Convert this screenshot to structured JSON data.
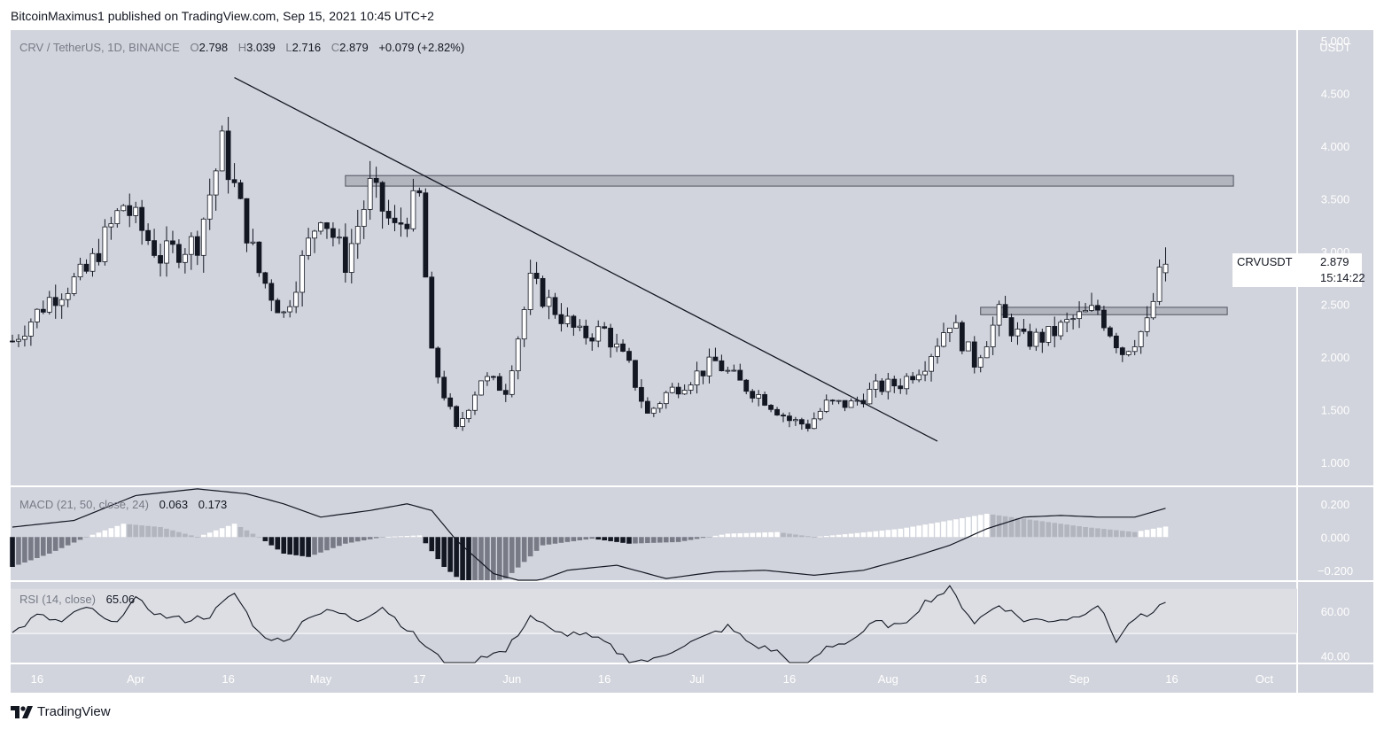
{
  "header": {
    "published": "BitcoinMaximus1 published on TradingView.com, Sep 15, 2021 10:45 UTC+2"
  },
  "footer": {
    "brand": "TradingView",
    "logo": "tradingview-logo"
  },
  "legend": {
    "symbol": "CRV / TetherUS, 1D, BINANCE",
    "o_label": "O",
    "o": "2.798",
    "h_label": "H",
    "h": "3.039",
    "l_label": "L",
    "l": "2.716",
    "c_label": "C",
    "c": "2.879",
    "change": "+0.079 (+2.82%)"
  },
  "price_label": {
    "ticker": "CRVUSDT",
    "price": "2.879",
    "countdown": "15:14:22"
  },
  "axis_unit": "USDT",
  "colors": {
    "background": "#d1d4dc",
    "band": "#b2b5be",
    "candle_up": "#ffffff",
    "candle_down": "#131722",
    "line": "#131722",
    "hist_grey": "#787b86"
  },
  "chart_data": [
    {
      "type": "candlestick",
      "title": "CRV / TetherUS, 1D, BINANCE",
      "ylabel": "USDT",
      "ylim": [
        0.78,
        5.1
      ],
      "yticks": [
        5.0,
        4.5,
        4.0,
        3.5,
        3.0,
        2.5,
        2.0,
        1.5,
        1.0
      ],
      "ytick_labels": [
        "5.000",
        "4.500",
        "4.000",
        "3.500",
        "3.000",
        "2.500",
        "2.000",
        "1.500",
        "1.000"
      ],
      "x_index_range": [
        0,
        198
      ],
      "xticks": [
        {
          "label": "16",
          "index": 4
        },
        {
          "label": "Apr",
          "index": 20
        },
        {
          "label": "16",
          "index": 35
        },
        {
          "label": "May",
          "index": 50
        },
        {
          "label": "17",
          "index": 66
        },
        {
          "label": "Jun",
          "index": 81
        },
        {
          "label": "16",
          "index": 96
        },
        {
          "label": "Jul",
          "index": 111
        },
        {
          "label": "16",
          "index": 126
        },
        {
          "label": "Aug",
          "index": 142
        },
        {
          "label": "16",
          "index": 157
        },
        {
          "label": "Sep",
          "index": 173
        },
        {
          "label": "16",
          "index": 188
        },
        {
          "label": "Oct",
          "index": 203
        }
      ],
      "key_points": [
        {
          "i": 0,
          "p": 2.15
        },
        {
          "i": 6,
          "p": 2.55
        },
        {
          "i": 12,
          "p": 2.8
        },
        {
          "i": 18,
          "p": 3.45
        },
        {
          "i": 24,
          "p": 2.95
        },
        {
          "i": 30,
          "p": 3.1
        },
        {
          "i": 34,
          "p": 4.0
        },
        {
          "i": 40,
          "p": 2.8
        },
        {
          "i": 44,
          "p": 2.4
        },
        {
          "i": 50,
          "p": 3.4
        },
        {
          "i": 54,
          "p": 2.9
        },
        {
          "i": 58,
          "p": 3.6
        },
        {
          "i": 62,
          "p": 3.2
        },
        {
          "i": 66,
          "p": 3.5
        },
        {
          "i": 68,
          "p": 2.0
        },
        {
          "i": 72,
          "p": 1.3
        },
        {
          "i": 76,
          "p": 1.8
        },
        {
          "i": 80,
          "p": 1.7
        },
        {
          "i": 84,
          "p": 2.7
        },
        {
          "i": 88,
          "p": 2.45
        },
        {
          "i": 92,
          "p": 2.2
        },
        {
          "i": 96,
          "p": 2.25
        },
        {
          "i": 100,
          "p": 1.9
        },
        {
          "i": 103,
          "p": 1.45
        },
        {
          "i": 106,
          "p": 1.65
        },
        {
          "i": 110,
          "p": 1.8
        },
        {
          "i": 114,
          "p": 1.95
        },
        {
          "i": 118,
          "p": 1.75
        },
        {
          "i": 122,
          "p": 1.6
        },
        {
          "i": 126,
          "p": 1.4
        },
        {
          "i": 129,
          "p": 1.35
        },
        {
          "i": 132,
          "p": 1.55
        },
        {
          "i": 136,
          "p": 1.55
        },
        {
          "i": 140,
          "p": 1.7
        },
        {
          "i": 144,
          "p": 1.75
        },
        {
          "i": 148,
          "p": 1.95
        },
        {
          "i": 152,
          "p": 2.35
        },
        {
          "i": 156,
          "p": 1.95
        },
        {
          "i": 160,
          "p": 2.4
        },
        {
          "i": 164,
          "p": 2.15
        },
        {
          "i": 168,
          "p": 2.2
        },
        {
          "i": 172,
          "p": 2.35
        },
        {
          "i": 176,
          "p": 2.45
        },
        {
          "i": 180,
          "p": 2.05
        },
        {
          "i": 184,
          "p": 2.3
        },
        {
          "i": 186,
          "p": 2.75
        },
        {
          "i": 187,
          "p": 2.879
        }
      ],
      "resistance_zone": {
        "from_index": 54,
        "to_index": 198,
        "low": 3.62,
        "high": 3.72
      },
      "breakout_zone": {
        "from_index": 157,
        "to_index": 197,
        "low": 2.4,
        "high": 2.47
      },
      "trendline": {
        "from": {
          "i": 36,
          "p": 4.65
        },
        "to": {
          "i": 150,
          "p": 1.2
        }
      },
      "last": {
        "open": 2.798,
        "high": 3.039,
        "low": 2.716,
        "close": 2.879,
        "change": 0.079,
        "change_pct": 2.82
      }
    },
    {
      "type": "macd",
      "title": "MACD (21, 50, close, 24)",
      "macd_value": "0.063",
      "signal_value": "0.173",
      "yticks": [
        0.2,
        0.0,
        -0.2
      ],
      "ytick_labels": [
        "0.200",
        "0.000",
        "−0.200"
      ],
      "ylim": [
        -0.26,
        0.3
      ],
      "signal_points": [
        {
          "i": 0,
          "v": 0.06
        },
        {
          "i": 10,
          "v": 0.1
        },
        {
          "i": 20,
          "v": 0.25
        },
        {
          "i": 30,
          "v": 0.29
        },
        {
          "i": 38,
          "v": 0.26
        },
        {
          "i": 44,
          "v": 0.2
        },
        {
          "i": 50,
          "v": 0.12
        },
        {
          "i": 58,
          "v": 0.16
        },
        {
          "i": 64,
          "v": 0.2
        },
        {
          "i": 68,
          "v": 0.16
        },
        {
          "i": 72,
          "v": -0.02
        },
        {
          "i": 78,
          "v": -0.22
        },
        {
          "i": 84,
          "v": -0.28
        },
        {
          "i": 90,
          "v": -0.2
        },
        {
          "i": 98,
          "v": -0.17
        },
        {
          "i": 106,
          "v": -0.25
        },
        {
          "i": 114,
          "v": -0.21
        },
        {
          "i": 122,
          "v": -0.2
        },
        {
          "i": 130,
          "v": -0.23
        },
        {
          "i": 138,
          "v": -0.2
        },
        {
          "i": 146,
          "v": -0.12
        },
        {
          "i": 152,
          "v": -0.05
        },
        {
          "i": 158,
          "v": 0.05
        },
        {
          "i": 164,
          "v": 0.12
        },
        {
          "i": 170,
          "v": 0.13
        },
        {
          "i": 176,
          "v": 0.12
        },
        {
          "i": 182,
          "v": 0.12
        },
        {
          "i": 187,
          "v": 0.173
        }
      ],
      "histogram_points": [
        {
          "i": 0,
          "v": -0.18
        },
        {
          "i": 6,
          "v": -0.1
        },
        {
          "i": 12,
          "v": 0.0
        },
        {
          "i": 18,
          "v": 0.08
        },
        {
          "i": 24,
          "v": 0.06
        },
        {
          "i": 30,
          "v": 0.0
        },
        {
          "i": 36,
          "v": 0.08
        },
        {
          "i": 40,
          "v": 0.0
        },
        {
          "i": 44,
          "v": -0.1
        },
        {
          "i": 48,
          "v": -0.12
        },
        {
          "i": 54,
          "v": -0.04
        },
        {
          "i": 60,
          "v": 0.0
        },
        {
          "i": 66,
          "v": 0.01
        },
        {
          "i": 70,
          "v": -0.18
        },
        {
          "i": 74,
          "v": -0.3
        },
        {
          "i": 80,
          "v": -0.25
        },
        {
          "i": 86,
          "v": -0.05
        },
        {
          "i": 94,
          "v": -0.01
        },
        {
          "i": 100,
          "v": -0.04
        },
        {
          "i": 108,
          "v": -0.03
        },
        {
          "i": 116,
          "v": 0.02
        },
        {
          "i": 124,
          "v": 0.03
        },
        {
          "i": 130,
          "v": 0.0
        },
        {
          "i": 136,
          "v": 0.02
        },
        {
          "i": 144,
          "v": 0.05
        },
        {
          "i": 152,
          "v": 0.1
        },
        {
          "i": 158,
          "v": 0.14
        },
        {
          "i": 166,
          "v": 0.1
        },
        {
          "i": 174,
          "v": 0.06
        },
        {
          "i": 182,
          "v": 0.03
        },
        {
          "i": 187,
          "v": 0.063
        }
      ]
    },
    {
      "type": "rsi",
      "title": "RSI (14, close)",
      "value": "65.06",
      "yticks": [
        60,
        40
      ],
      "ytick_labels": [
        "60.00",
        "40.00"
      ],
      "ylim": [
        37,
        73
      ],
      "band": [
        50,
        70
      ],
      "points": [
        {
          "i": 0,
          "v": 50
        },
        {
          "i": 4,
          "v": 58
        },
        {
          "i": 8,
          "v": 55
        },
        {
          "i": 12,
          "v": 62
        },
        {
          "i": 16,
          "v": 54
        },
        {
          "i": 20,
          "v": 65
        },
        {
          "i": 24,
          "v": 58
        },
        {
          "i": 28,
          "v": 56
        },
        {
          "i": 32,
          "v": 58
        },
        {
          "i": 36,
          "v": 68
        },
        {
          "i": 40,
          "v": 50
        },
        {
          "i": 44,
          "v": 46
        },
        {
          "i": 48,
          "v": 58
        },
        {
          "i": 52,
          "v": 60
        },
        {
          "i": 56,
          "v": 56
        },
        {
          "i": 60,
          "v": 62
        },
        {
          "i": 64,
          "v": 52
        },
        {
          "i": 68,
          "v": 42
        },
        {
          "i": 72,
          "v": 32
        },
        {
          "i": 76,
          "v": 40
        },
        {
          "i": 80,
          "v": 42
        },
        {
          "i": 84,
          "v": 58
        },
        {
          "i": 88,
          "v": 50
        },
        {
          "i": 92,
          "v": 50
        },
        {
          "i": 96,
          "v": 46
        },
        {
          "i": 100,
          "v": 38
        },
        {
          "i": 104,
          "v": 38
        },
        {
          "i": 108,
          "v": 44
        },
        {
          "i": 112,
          "v": 48
        },
        {
          "i": 116,
          "v": 53
        },
        {
          "i": 120,
          "v": 45
        },
        {
          "i": 124,
          "v": 42
        },
        {
          "i": 128,
          "v": 33
        },
        {
          "i": 132,
          "v": 44
        },
        {
          "i": 136,
          "v": 47
        },
        {
          "i": 140,
          "v": 55
        },
        {
          "i": 144,
          "v": 53
        },
        {
          "i": 148,
          "v": 64
        },
        {
          "i": 152,
          "v": 70
        },
        {
          "i": 156,
          "v": 55
        },
        {
          "i": 160,
          "v": 63
        },
        {
          "i": 164,
          "v": 56
        },
        {
          "i": 168,
          "v": 56
        },
        {
          "i": 172,
          "v": 57
        },
        {
          "i": 176,
          "v": 63
        },
        {
          "i": 179,
          "v": 47
        },
        {
          "i": 182,
          "v": 57
        },
        {
          "i": 185,
          "v": 58
        },
        {
          "i": 187,
          "v": 65.06
        }
      ]
    }
  ]
}
